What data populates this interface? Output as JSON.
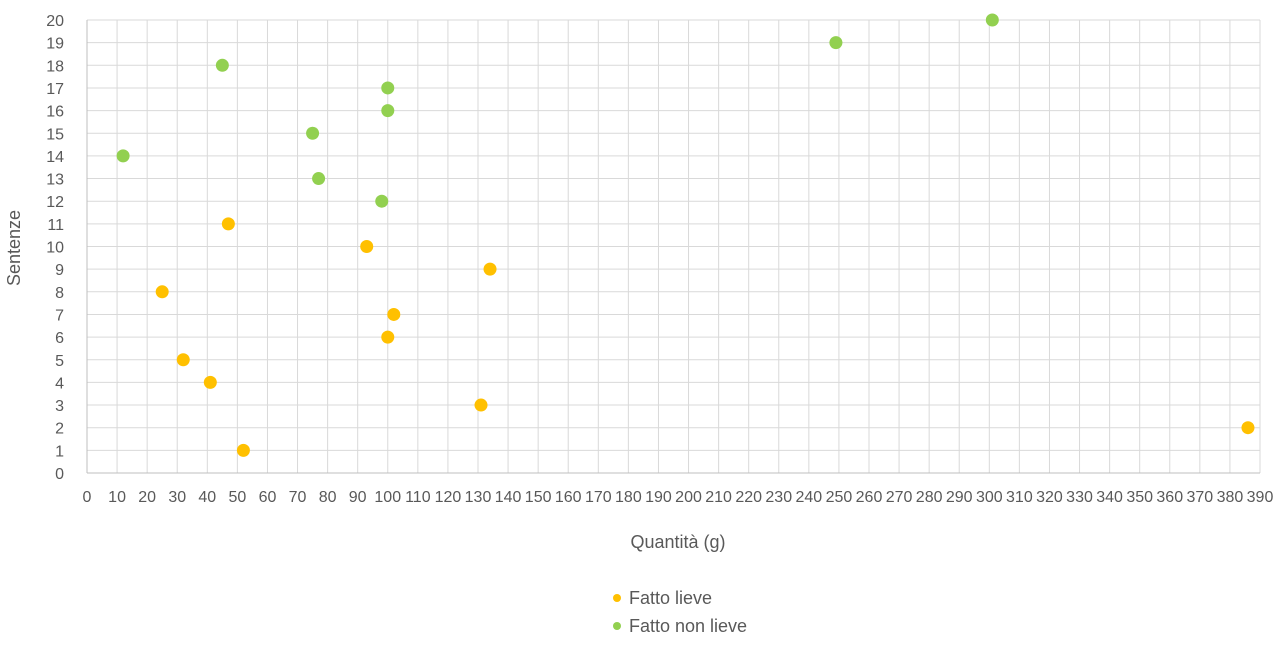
{
  "chart_data": {
    "type": "scatter",
    "title": "",
    "xlabel": "Quantità (g)",
    "ylabel": "Sentenze",
    "xlim": [
      0,
      390
    ],
    "ylim": [
      0,
      20
    ],
    "x_major": 10,
    "y_major": 1,
    "grid": true,
    "legend_position": "bottom",
    "series": [
      {
        "name": "Fatto lieve",
        "color": "#FFC000",
        "points": [
          {
            "x": 52,
            "y": 1
          },
          {
            "x": 386,
            "y": 2
          },
          {
            "x": 131,
            "y": 3
          },
          {
            "x": 41,
            "y": 4
          },
          {
            "x": 32,
            "y": 5
          },
          {
            "x": 100,
            "y": 6
          },
          {
            "x": 102,
            "y": 7
          },
          {
            "x": 25,
            "y": 8
          },
          {
            "x": 134,
            "y": 9
          },
          {
            "x": 93,
            "y": 10
          },
          {
            "x": 47,
            "y": 11
          }
        ]
      },
      {
        "name": "Fatto non lieve",
        "color": "#92D050",
        "points": [
          {
            "x": 98,
            "y": 12
          },
          {
            "x": 77,
            "y": 13
          },
          {
            "x": 12,
            "y": 14
          },
          {
            "x": 75,
            "y": 15
          },
          {
            "x": 100,
            "y": 16
          },
          {
            "x": 100,
            "y": 17
          },
          {
            "x": 45,
            "y": 18
          },
          {
            "x": 249,
            "y": 19
          },
          {
            "x": 301,
            "y": 20
          }
        ]
      }
    ]
  }
}
